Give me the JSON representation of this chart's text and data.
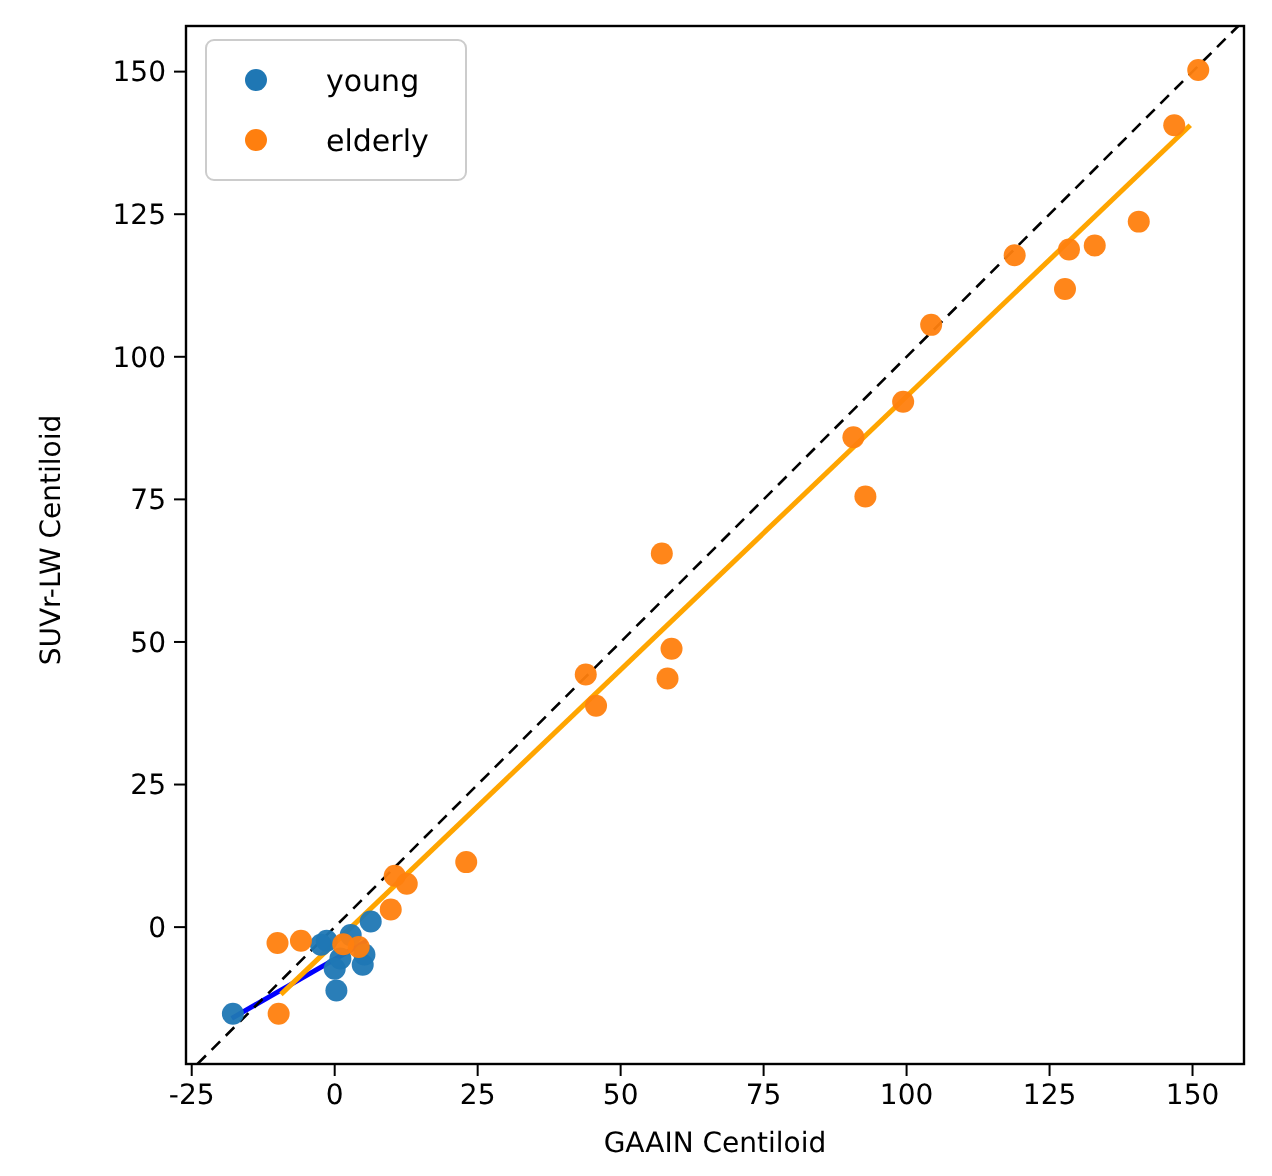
{
  "chart_data": {
    "type": "scatter",
    "xlabel": "GAAIN Centiloid",
    "ylabel": "SUVr-LW Centiloid",
    "xlim": [
      -26,
      159
    ],
    "ylim": [
      -24,
      158
    ],
    "xticks": [
      -25,
      0,
      25,
      50,
      75,
      100,
      125,
      150
    ],
    "yticks": [
      0,
      25,
      50,
      75,
      100,
      125,
      150
    ],
    "grid": false,
    "legend": "top left",
    "marker": "circle",
    "series": [
      {
        "name": "young",
        "color": "#1f77b4",
        "x": [
          -17.8,
          -1.4,
          -2.4,
          0.3,
          0,
          4.9,
          5.2,
          6.3,
          2.8,
          1.0
        ],
        "values": [
          -15.2,
          -2.4,
          -3.1,
          -11.1,
          -7.3,
          -6.6,
          -4.8,
          1.0,
          -1.4,
          -5.5
        ]
      },
      {
        "name": "elderly",
        "color": "#ff7f0e",
        "x": [
          151,
          146.8,
          140.6,
          132.9,
          128.4,
          127.7,
          118.9,
          104.3,
          99.4,
          90.7,
          92.8,
          57.2,
          58.9,
          58.2,
          43.9,
          45.7,
          23,
          12.6,
          10.5,
          9.8,
          -10,
          -5.9,
          -9.8,
          4.2,
          1.5
        ],
        "values": [
          150.3,
          140.6,
          123.7,
          119.5,
          118.8,
          111.9,
          117.8,
          105.6,
          92.1,
          85.9,
          75.5,
          65.5,
          48.8,
          43.6,
          44.3,
          38.8,
          11.4,
          7.6,
          9.0,
          3.1,
          -2.8,
          -2.4,
          -15.2,
          -3.5,
          -3
        ]
      },
      {
        "type": "line",
        "marker": "none",
        "color": "#0000ff",
        "line_style": "solid",
        "x": [
          -18,
          5.6
        ],
        "values": [
          -16,
          -2.4
        ]
      },
      {
        "type": "line",
        "marker": "none",
        "color": "#ffa500",
        "line_style": "solid",
        "x": [
          -9.4,
          149.6
        ],
        "values": [
          -11.8,
          140.6
        ]
      },
      {
        "type": "line",
        "marker": "none",
        "color": "#000000",
        "line_style": "dashed",
        "x": [
          -24,
          158
        ],
        "values": [
          -24,
          158
        ]
      }
    ]
  }
}
